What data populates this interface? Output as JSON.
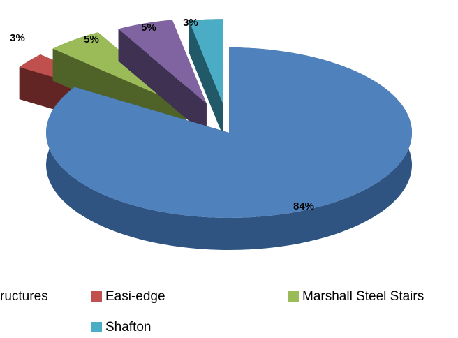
{
  "chart_data": {
    "type": "pie3d",
    "categories": [
      "ructures",
      "Easi-edge",
      "Marshall Steel Stairs",
      null,
      "Shafton"
    ],
    "values": [
      84,
      3,
      5,
      5,
      3
    ],
    "value_labels": [
      "84%",
      "3%",
      "5%",
      "5%",
      "3%"
    ],
    "colors": [
      "#4f81bd",
      "#c0504d",
      "#9bbb59",
      "#8064a2",
      "#4bacc6"
    ],
    "legend": "bottom"
  }
}
